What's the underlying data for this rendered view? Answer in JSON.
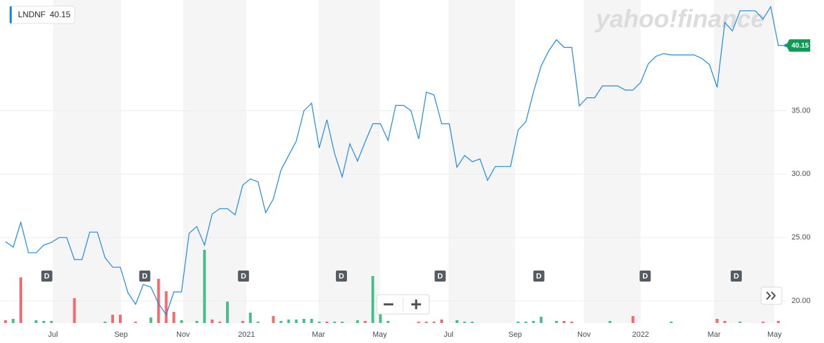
{
  "chart_data": {
    "type": "line",
    "series": [
      {
        "name": "LNDNF",
        "color": "#1a8ae2",
        "values": [
          24.67,
          24.24,
          26.2,
          23.8,
          23.8,
          24.4,
          24.62,
          25.0,
          25.0,
          23.26,
          23.26,
          25.43,
          25.43,
          23.42,
          22.66,
          22.66,
          20.65,
          19.73,
          21.3,
          21.09,
          19.78,
          18.91,
          20.71,
          20.71,
          25.33,
          25.87,
          24.4,
          26.85,
          27.28,
          27.28,
          26.79,
          29.13,
          29.62,
          29.4,
          26.96,
          28.04,
          30.33,
          31.47,
          32.61,
          35.0,
          35.6,
          32.07,
          34.29,
          31.63,
          29.78,
          32.39,
          31.03,
          32.55,
          33.97,
          33.97,
          32.66,
          35.43,
          35.43,
          35.0,
          32.77,
          36.47,
          36.25,
          33.97,
          33.97,
          30.54,
          31.47,
          30.98,
          31.2,
          29.51,
          30.6,
          30.6,
          30.6,
          33.48,
          34.13,
          36.47,
          38.53,
          39.73,
          40.6,
          40.0,
          40.0,
          35.38,
          36.03,
          36.03,
          36.96,
          36.96,
          36.96,
          36.63,
          36.63,
          37.23,
          38.7,
          39.29,
          39.51,
          39.4,
          39.4,
          39.4,
          39.4,
          39.13,
          38.64,
          36.85,
          41.96,
          41.3,
          42.88,
          42.88,
          42.88,
          42.23,
          43.2,
          40.15,
          40.15
        ]
      }
    ],
    "last_price": 40.15,
    "badge_color": "#0d9b55",
    "xlim": [
      0,
      102
    ],
    "ylim": [
      18.26,
      43.3
    ],
    "yticks": [
      {
        "value": 20,
        "label": "20.00"
      },
      {
        "value": 25,
        "label": "25.00"
      },
      {
        "value": 30,
        "label": "30.00"
      },
      {
        "value": 35,
        "label": "35.00"
      }
    ],
    "grid": true,
    "xticks": [
      {
        "value": 6.2,
        "label": "Jul"
      },
      {
        "value": 15.1,
        "label": "Sep"
      },
      {
        "value": 23.2,
        "label": "Nov"
      },
      {
        "value": 31.5,
        "label": "2021"
      },
      {
        "value": 40.9,
        "label": "Mar"
      },
      {
        "value": 48.9,
        "label": "May"
      },
      {
        "value": 57.9,
        "label": "Jul"
      },
      {
        "value": 66.6,
        "label": "Sep"
      },
      {
        "value": 75.6,
        "label": "Nov"
      },
      {
        "value": 83,
        "label": "2022"
      },
      {
        "value": 92.6,
        "label": "Mar"
      },
      {
        "value": 100.5,
        "label": "May"
      }
    ],
    "shaded_bands": true,
    "volume": {
      "up_color": "#44c08a",
      "down_color": "#f06a6e",
      "bars": [
        {
          "x": 0,
          "value": 4,
          "up": false
        },
        {
          "x": 1,
          "value": 6,
          "up": true
        },
        {
          "x": 2,
          "value": 66,
          "up": false
        },
        {
          "x": 4,
          "value": 4,
          "up": true
        },
        {
          "x": 5,
          "value": 3,
          "up": true
        },
        {
          "x": 6,
          "value": 3,
          "up": true
        },
        {
          "x": 9,
          "value": 36,
          "up": false
        },
        {
          "x": 13,
          "value": 2,
          "up": true
        },
        {
          "x": 14,
          "value": 12,
          "up": false
        },
        {
          "x": 15,
          "value": 12,
          "up": false
        },
        {
          "x": 17,
          "value": 2,
          "up": false
        },
        {
          "x": 19,
          "value": 8,
          "up": true
        },
        {
          "x": 20,
          "value": 64,
          "up": false
        },
        {
          "x": 21,
          "value": 46,
          "up": false
        },
        {
          "x": 22,
          "value": 16,
          "up": false
        },
        {
          "x": 23,
          "value": 4,
          "up": true
        },
        {
          "x": 25,
          "value": 3,
          "up": true
        },
        {
          "x": 26,
          "value": 106,
          "up": true
        },
        {
          "x": 27,
          "value": 5,
          "up": false
        },
        {
          "x": 28,
          "value": 2,
          "up": false
        },
        {
          "x": 29,
          "value": 31,
          "up": true
        },
        {
          "x": 31,
          "value": 3,
          "up": false
        },
        {
          "x": 32,
          "value": 15,
          "up": true
        },
        {
          "x": 33,
          "value": 2,
          "up": true
        },
        {
          "x": 35,
          "value": 10,
          "up": false
        },
        {
          "x": 36,
          "value": 3,
          "up": true
        },
        {
          "x": 37,
          "value": 5,
          "up": true
        },
        {
          "x": 38,
          "value": 5,
          "up": true
        },
        {
          "x": 39,
          "value": 6,
          "up": true
        },
        {
          "x": 40,
          "value": 6,
          "up": true
        },
        {
          "x": 41,
          "value": 2,
          "up": true
        },
        {
          "x": 42,
          "value": 2,
          "up": false
        },
        {
          "x": 43,
          "value": 2,
          "up": true
        },
        {
          "x": 44,
          "value": 2,
          "up": true
        },
        {
          "x": 46,
          "value": 4,
          "up": true
        },
        {
          "x": 47,
          "value": 3,
          "up": false
        },
        {
          "x": 48,
          "value": 68,
          "up": true
        },
        {
          "x": 49,
          "value": 14,
          "up": true
        },
        {
          "x": 50,
          "value": 3,
          "up": true
        },
        {
          "x": 54,
          "value": 2,
          "up": false
        },
        {
          "x": 55,
          "value": 2,
          "up": false
        },
        {
          "x": 56,
          "value": 2,
          "up": false
        },
        {
          "x": 57,
          "value": 5,
          "up": false
        },
        {
          "x": 59,
          "value": 4,
          "up": true
        },
        {
          "x": 60,
          "value": 2,
          "up": true
        },
        {
          "x": 61,
          "value": 2,
          "up": true
        },
        {
          "x": 67,
          "value": 2,
          "up": true
        },
        {
          "x": 68,
          "value": 2,
          "up": true
        },
        {
          "x": 69,
          "value": 3,
          "up": true
        },
        {
          "x": 70,
          "value": 9,
          "up": true
        },
        {
          "x": 72,
          "value": 3,
          "up": true
        },
        {
          "x": 73,
          "value": 3,
          "up": false
        },
        {
          "x": 74,
          "value": 2,
          "up": false
        },
        {
          "x": 79,
          "value": 3,
          "up": true
        },
        {
          "x": 82,
          "value": 10,
          "up": false
        },
        {
          "x": 87,
          "value": 2,
          "up": true
        },
        {
          "x": 93,
          "value": 6,
          "up": false
        },
        {
          "x": 94,
          "value": 3,
          "up": false
        },
        {
          "x": 96,
          "value": 2,
          "up": true
        },
        {
          "x": 99,
          "value": 2,
          "up": false
        },
        {
          "x": 101,
          "value": 3,
          "up": false
        }
      ]
    },
    "events": [
      {
        "x": 5.4,
        "label": "D"
      },
      {
        "x": 18.2,
        "label": "D"
      },
      {
        "x": 31.1,
        "label": "D"
      },
      {
        "x": 43.9,
        "label": "D"
      },
      {
        "x": 56.8,
        "label": "D"
      },
      {
        "x": 69.7,
        "label": "D"
      },
      {
        "x": 83.6,
        "label": "D"
      },
      {
        "x": 95.5,
        "label": "D"
      }
    ],
    "watermark": "yahoo!finance"
  }
}
